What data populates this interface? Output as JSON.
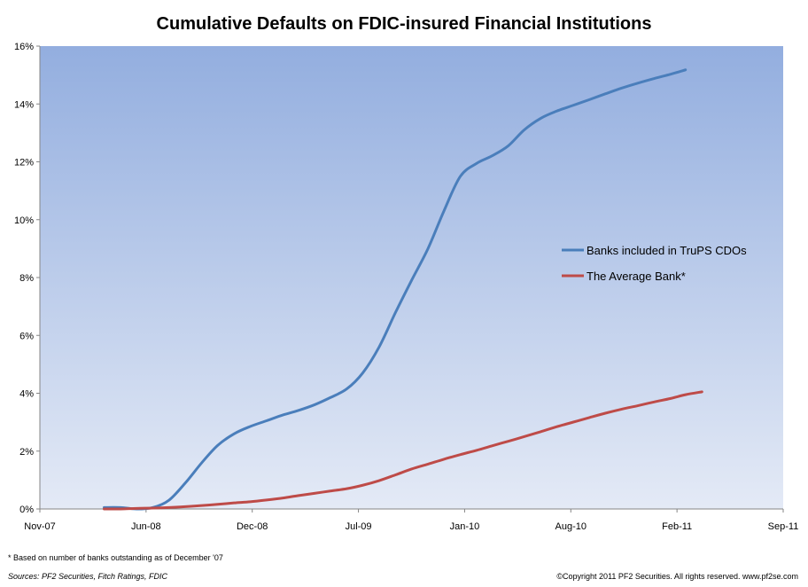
{
  "chart_data": {
    "type": "line",
    "title": "Cumulative Defaults on FDIC-insured Financial Institutions",
    "xlabel": "",
    "ylabel": "",
    "x_tick_labels": [
      "Nov-07",
      "Jun-08",
      "Dec-08",
      "Jul-09",
      "Jan-10",
      "Aug-10",
      "Feb-11",
      "Sep-11"
    ],
    "y_tick_labels": [
      "0%",
      "2%",
      "4%",
      "6%",
      "8%",
      "10%",
      "12%",
      "14%",
      "16%"
    ],
    "xlim": [
      "2007-11-01",
      "2011-09-01"
    ],
    "ylim": [
      0,
      16
    ],
    "grid": false,
    "legend_position": "right",
    "series": [
      {
        "name": "Banks included in TruPS CDOs",
        "color": "#4a7ebb",
        "points": [
          {
            "x": "2008-03-01",
            "y": 0.05
          },
          {
            "x": "2008-04-01",
            "y": 0.05
          },
          {
            "x": "2008-05-01",
            "y": 0.0
          },
          {
            "x": "2008-06-01",
            "y": 0.05
          },
          {
            "x": "2008-07-01",
            "y": 0.3
          },
          {
            "x": "2008-08-01",
            "y": 0.9
          },
          {
            "x": "2008-09-01",
            "y": 1.6
          },
          {
            "x": "2008-10-01",
            "y": 2.2
          },
          {
            "x": "2008-11-01",
            "y": 2.6
          },
          {
            "x": "2008-12-01",
            "y": 2.85
          },
          {
            "x": "2009-01-01",
            "y": 3.05
          },
          {
            "x": "2009-02-01",
            "y": 3.25
          },
          {
            "x": "2009-03-01",
            "y": 3.4
          },
          {
            "x": "2009-04-01",
            "y": 3.6
          },
          {
            "x": "2009-05-01",
            "y": 3.85
          },
          {
            "x": "2009-06-01",
            "y": 4.15
          },
          {
            "x": "2009-07-01",
            "y": 4.7
          },
          {
            "x": "2009-08-01",
            "y": 5.6
          },
          {
            "x": "2009-09-01",
            "y": 6.8
          },
          {
            "x": "2009-10-01",
            "y": 7.9
          },
          {
            "x": "2009-11-01",
            "y": 9.0
          },
          {
            "x": "2009-12-01",
            "y": 10.3
          },
          {
            "x": "2010-01-01",
            "y": 11.5
          },
          {
            "x": "2010-02-01",
            "y": 11.95
          },
          {
            "x": "2010-03-01",
            "y": 12.2
          },
          {
            "x": "2010-04-01",
            "y": 12.55
          },
          {
            "x": "2010-05-01",
            "y": 13.1
          },
          {
            "x": "2010-06-01",
            "y": 13.5
          },
          {
            "x": "2010-07-01",
            "y": 13.75
          },
          {
            "x": "2010-08-01",
            "y": 13.95
          },
          {
            "x": "2010-09-01",
            "y": 14.15
          },
          {
            "x": "2010-10-01",
            "y": 14.35
          },
          {
            "x": "2010-11-01",
            "y": 14.55
          },
          {
            "x": "2010-12-01",
            "y": 14.72
          },
          {
            "x": "2011-01-01",
            "y": 14.88
          },
          {
            "x": "2011-02-01",
            "y": 15.03
          },
          {
            "x": "2011-03-01",
            "y": 15.18
          }
        ]
      },
      {
        "name": "The Average Bank*",
        "color": "#be4b48",
        "points": [
          {
            "x": "2008-03-01",
            "y": 0.0
          },
          {
            "x": "2008-04-01",
            "y": 0.0
          },
          {
            "x": "2008-05-01",
            "y": 0.02
          },
          {
            "x": "2008-06-01",
            "y": 0.03
          },
          {
            "x": "2008-07-01",
            "y": 0.05
          },
          {
            "x": "2008-08-01",
            "y": 0.08
          },
          {
            "x": "2008-09-01",
            "y": 0.12
          },
          {
            "x": "2008-10-01",
            "y": 0.16
          },
          {
            "x": "2008-11-01",
            "y": 0.21
          },
          {
            "x": "2008-12-01",
            "y": 0.25
          },
          {
            "x": "2009-01-01",
            "y": 0.31
          },
          {
            "x": "2009-02-01",
            "y": 0.38
          },
          {
            "x": "2009-03-01",
            "y": 0.46
          },
          {
            "x": "2009-04-01",
            "y": 0.54
          },
          {
            "x": "2009-05-01",
            "y": 0.62
          },
          {
            "x": "2009-06-01",
            "y": 0.7
          },
          {
            "x": "2009-07-01",
            "y": 0.82
          },
          {
            "x": "2009-08-01",
            "y": 0.98
          },
          {
            "x": "2009-09-01",
            "y": 1.18
          },
          {
            "x": "2009-10-01",
            "y": 1.38
          },
          {
            "x": "2009-11-01",
            "y": 1.55
          },
          {
            "x": "2009-12-01",
            "y": 1.72
          },
          {
            "x": "2010-01-01",
            "y": 1.88
          },
          {
            "x": "2010-02-01",
            "y": 2.03
          },
          {
            "x": "2010-03-01",
            "y": 2.18
          },
          {
            "x": "2010-04-01",
            "y": 2.34
          },
          {
            "x": "2010-05-01",
            "y": 2.5
          },
          {
            "x": "2010-06-01",
            "y": 2.67
          },
          {
            "x": "2010-07-01",
            "y": 2.84
          },
          {
            "x": "2010-08-01",
            "y": 3.0
          },
          {
            "x": "2010-09-01",
            "y": 3.16
          },
          {
            "x": "2010-10-01",
            "y": 3.31
          },
          {
            "x": "2010-11-01",
            "y": 3.45
          },
          {
            "x": "2010-12-01",
            "y": 3.57
          },
          {
            "x": "2011-01-01",
            "y": 3.7
          },
          {
            "x": "2011-02-01",
            "y": 3.82
          },
          {
            "x": "2011-03-01",
            "y": 3.95
          },
          {
            "x": "2011-04-01",
            "y": 4.05
          }
        ]
      }
    ]
  },
  "plot_background": {
    "top_color": "#93aedf",
    "bottom_color": "#e4eaf6"
  },
  "footnote": "* Based on number of banks outstanding as of December '07",
  "sources": "Sources:  PF2 Securities, Fitch Ratings, FDIC",
  "copyright": "©Copyright 2011 PF2 Securities. All rights reserved. www.pf2se.com"
}
